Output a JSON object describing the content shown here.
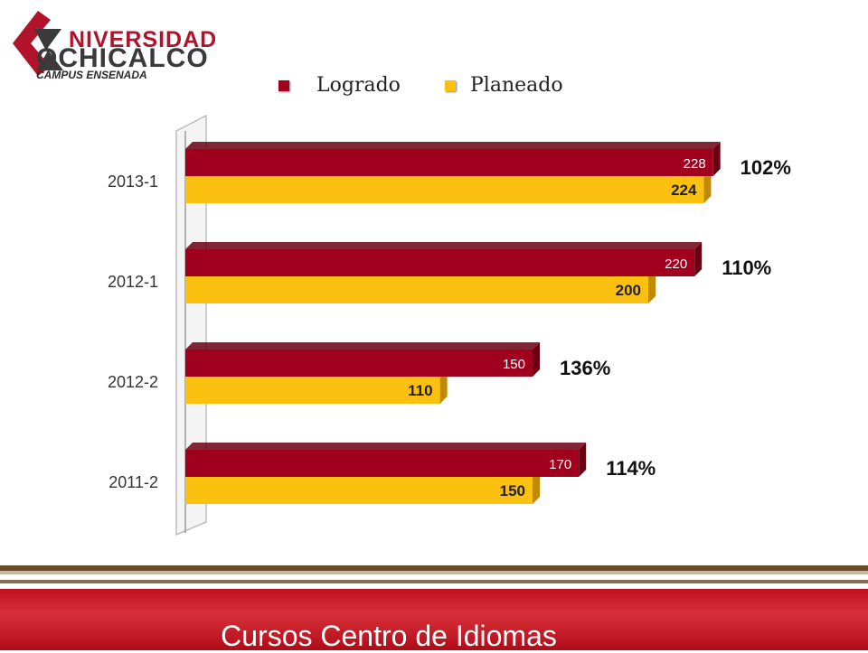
{
  "logo": {
    "line1": "NIVERSIDAD",
    "line2": "OCHICALCO",
    "line3": "CAMPUS ENSENADA"
  },
  "colors": {
    "logrado": "#a0001e",
    "planeado": "#fcc010",
    "footer": "#c0101e"
  },
  "footer": {
    "title": "Cursos Centro de Idiomas"
  },
  "chart_data": {
    "type": "bar",
    "orientation": "horizontal",
    "categories": [
      "2013-1",
      "2012-1",
      "2012-2",
      "2011-2"
    ],
    "series": [
      {
        "name": "Logrado",
        "values": [
          228,
          220,
          150,
          170
        ]
      },
      {
        "name": "Planeado",
        "values": [
          224,
          200,
          110,
          150
        ]
      }
    ],
    "percent_labels": [
      "102%",
      "110%",
      "136%",
      "114%"
    ],
    "xlim": [
      0,
      250
    ],
    "legend": "top",
    "grid": false,
    "title": "",
    "xlabel": "",
    "ylabel": ""
  }
}
